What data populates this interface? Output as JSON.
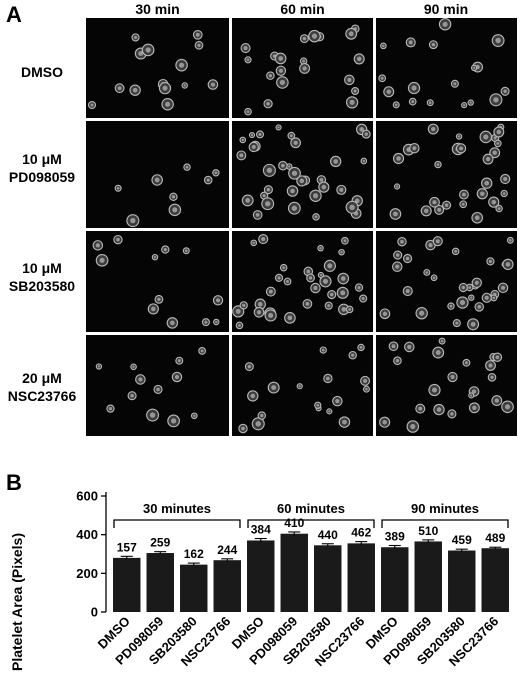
{
  "panel_a": {
    "letter": "A",
    "columns": [
      "30 min",
      "60 min",
      "90 min"
    ],
    "rows": [
      {
        "line1": "DMSO",
        "line2": ""
      },
      {
        "line1": "10 μM",
        "line2": "PD098059"
      },
      {
        "line1": "10 μM",
        "line2": "SB203580"
      },
      {
        "line1": "20 μM",
        "line2": "NSC23766"
      }
    ]
  },
  "panel_b": {
    "letter": "B"
  },
  "chart_data": {
    "type": "bar",
    "title": "",
    "ylabel": "Platelet Area (Pixels)",
    "xlabel": "",
    "ylim": [
      0,
      600
    ],
    "yticks": [
      0,
      200,
      400,
      600
    ],
    "grid": false,
    "categories": [
      "DMSO",
      "PD098059",
      "SB203580",
      "NSC23766",
      "DMSO",
      "PD098059",
      "SB203580",
      "NSC23766",
      "DMSO",
      "PD098059",
      "SB203580",
      "NSC23766"
    ],
    "values": [
      280,
      305,
      245,
      268,
      370,
      405,
      345,
      355,
      335,
      365,
      318,
      330
    ],
    "errors": [
      8,
      7,
      8,
      7,
      10,
      9,
      8,
      9,
      9,
      8,
      7,
      5
    ],
    "bar_labels": [
      "157",
      "259",
      "162",
      "244",
      "384",
      "410",
      "440",
      "462",
      "389",
      "510",
      "459",
      "489"
    ],
    "groups": [
      {
        "label": "30 minutes",
        "start": 0,
        "end": 3
      },
      {
        "label": "60 minutes",
        "start": 4,
        "end": 7
      },
      {
        "label": "90 minutes",
        "start": 8,
        "end": 11
      }
    ],
    "bar_color": "#1a1a1a"
  }
}
